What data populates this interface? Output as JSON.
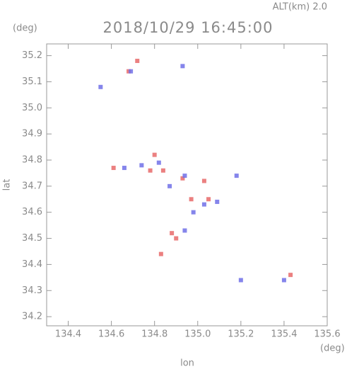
{
  "chart_data": {
    "type": "scatter",
    "title": "2018/10/29 16:45:00",
    "subtitle": "ALT(km)  2.0",
    "x_label": "lon",
    "y_label": "lat",
    "x_unit": "(deg)",
    "y_unit": "(deg)",
    "xlim": [
      134.3,
      135.6
    ],
    "ylim": [
      34.165,
      35.245
    ],
    "xticks": [
      134.4,
      134.6,
      134.8,
      {
        "value": 135,
        "label": "135.0"
      },
      135.2,
      135.4,
      135.6
    ],
    "yticks": [
      34.2,
      34.3,
      34.4,
      34.5,
      34.6,
      34.7,
      34.8,
      34.9,
      {
        "value": 35,
        "label": "35.0"
      },
      35.1,
      35.2
    ],
    "series": [
      {
        "color": "#e86a6a",
        "x": [
          134.72,
          134.68,
          134.61,
          134.8,
          134.78,
          134.84,
          134.93,
          135.03,
          134.9,
          134.88,
          134.83,
          135.05,
          134.97,
          135.43
        ],
        "values": [
          35.18,
          35.14,
          34.77,
          34.82,
          34.76,
          34.76,
          34.73,
          34.72,
          34.5,
          34.52,
          34.44,
          34.65,
          34.65,
          34.36
        ]
      },
      {
        "color": "#7070e8",
        "x": [
          134.55,
          134.69,
          134.66,
          134.74,
          134.82,
          134.94,
          134.87,
          134.98,
          135.03,
          135.18,
          135.09,
          135.2,
          135.4,
          134.94,
          134.93
        ],
        "values": [
          35.08,
          35.14,
          34.77,
          34.78,
          34.79,
          34.74,
          34.7,
          34.6,
          34.63,
          34.74,
          34.64,
          34.34,
          34.34,
          34.53,
          35.16
        ]
      }
    ]
  }
}
